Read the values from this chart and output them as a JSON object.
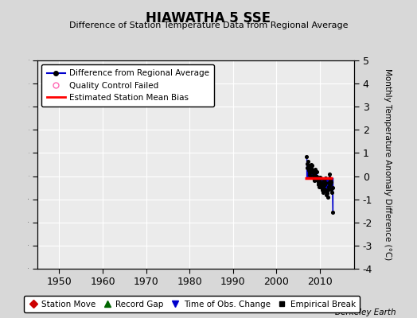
{
  "title": "HIAWATHA 5 SSE",
  "subtitle": "Difference of Station Temperature Data from Regional Average",
  "ylabel_right": "Monthly Temperature Anomaly Difference (°C)",
  "watermark": "Berkeley Earth",
  "xlim": [
    1945,
    2018
  ],
  "ylim": [
    -4,
    5
  ],
  "yticks": [
    -4,
    -3,
    -2,
    -1,
    0,
    1,
    2,
    3,
    4,
    5
  ],
  "xticks": [
    1950,
    1960,
    1970,
    1980,
    1990,
    2000,
    2010
  ],
  "bg_color": "#d8d8d8",
  "plot_bg_color": "#ebebeb",
  "grid_color": "#ffffff",
  "data_color": "#0000cc",
  "dot_color": "#000000",
  "bias_color": "#ff0000",
  "bias_y": -0.1,
  "bias_x_start": 2006.5,
  "bias_x_end": 2013.0,
  "monthly_data": [
    [
      2007.0,
      0.85
    ],
    [
      2007.1,
      0.55
    ],
    [
      2007.2,
      0.35
    ],
    [
      2007.3,
      0.65
    ],
    [
      2007.4,
      0.45
    ],
    [
      2007.5,
      0.25
    ],
    [
      2007.6,
      0.15
    ],
    [
      2007.7,
      0.05
    ],
    [
      2007.8,
      -0.05
    ],
    [
      2007.9,
      0.3
    ],
    [
      2008.0,
      0.5
    ],
    [
      2008.1,
      0.35
    ],
    [
      2008.2,
      0.2
    ],
    [
      2008.3,
      0.45
    ],
    [
      2008.4,
      0.25
    ],
    [
      2008.5,
      0.05
    ],
    [
      2008.6,
      -0.1
    ],
    [
      2008.7,
      -0.2
    ],
    [
      2008.8,
      0.1
    ],
    [
      2008.9,
      0.3
    ],
    [
      2009.0,
      0.15
    ],
    [
      2009.1,
      0.0
    ],
    [
      2009.2,
      -0.15
    ],
    [
      2009.3,
      0.2
    ],
    [
      2009.4,
      0.0
    ],
    [
      2009.5,
      -0.2
    ],
    [
      2009.6,
      -0.35
    ],
    [
      2009.7,
      -0.25
    ],
    [
      2009.8,
      -0.45
    ],
    [
      2009.9,
      -0.15
    ],
    [
      2010.0,
      -0.05
    ],
    [
      2010.1,
      -0.25
    ],
    [
      2010.2,
      -0.4
    ],
    [
      2010.3,
      -0.1
    ],
    [
      2010.4,
      -0.3
    ],
    [
      2010.5,
      -0.5
    ],
    [
      2010.6,
      -0.6
    ],
    [
      2010.7,
      -0.55
    ],
    [
      2010.8,
      -0.7
    ],
    [
      2010.9,
      -0.4
    ],
    [
      2011.0,
      -0.2
    ],
    [
      2011.1,
      -0.35
    ],
    [
      2011.2,
      -0.55
    ],
    [
      2011.3,
      -0.1
    ],
    [
      2011.4,
      -0.3
    ],
    [
      2011.5,
      -0.65
    ],
    [
      2011.6,
      -0.8
    ],
    [
      2011.7,
      -0.75
    ],
    [
      2011.8,
      -0.9
    ],
    [
      2011.9,
      -0.6
    ],
    [
      2012.0,
      -0.45
    ],
    [
      2012.1,
      -0.3
    ],
    [
      2012.2,
      -0.1
    ],
    [
      2012.3,
      0.1
    ],
    [
      2012.4,
      -0.15
    ],
    [
      2012.5,
      -0.35
    ],
    [
      2012.6,
      -0.55
    ],
    [
      2012.7,
      -0.25
    ],
    [
      2012.8,
      -0.7
    ],
    [
      2012.9,
      -0.5
    ],
    [
      2013.0,
      -1.55
    ]
  ],
  "legend1_items": [
    {
      "label": "Difference from Regional Average",
      "color": "#0000cc",
      "type": "line_dot"
    },
    {
      "label": "Quality Control Failed",
      "color": "#ff69b4",
      "type": "open_circle"
    },
    {
      "label": "Estimated Station Mean Bias",
      "color": "#ff0000",
      "type": "line"
    }
  ],
  "legend2_items": [
    {
      "label": "Station Move",
      "color": "#cc0000",
      "type": "diamond"
    },
    {
      "label": "Record Gap",
      "color": "#006600",
      "type": "triangle_up"
    },
    {
      "label": "Time of Obs. Change",
      "color": "#0000cc",
      "type": "triangle_down"
    },
    {
      "label": "Empirical Break",
      "color": "#000000",
      "type": "square"
    }
  ]
}
